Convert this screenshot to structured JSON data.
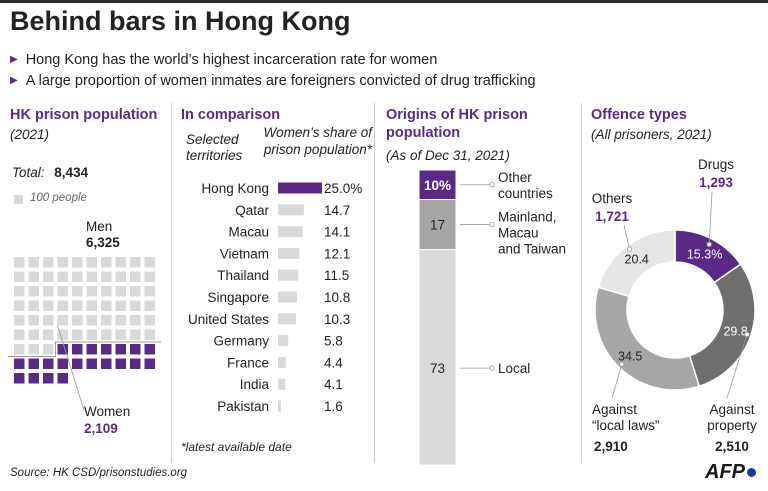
{
  "title": "Behind bars in Hong Kong",
  "bullets": [
    "Hong Kong has the world’s highest incarceration rate for women",
    "A large proportion of women inmates are foreigners convicted of drug trafficking"
  ],
  "colors": {
    "purple": "#5b2a86",
    "grey_light": "#d9d9d9",
    "grey_mid": "#a6a6a6",
    "grey_dark": "#6e6e6e",
    "grey_pale": "#e6e6e6"
  },
  "panel1": {
    "title": "HK prison population",
    "subtitle": "(2021)",
    "total_label": "Total:",
    "total_value": "8,434",
    "legend": "100 people",
    "men_label": "Men",
    "men_value": "6,325",
    "women_label": "Women",
    "women_value": "2,109"
  },
  "panel2": {
    "title": "In comparison",
    "col1_header": "Selected territories",
    "col2_header": "Women’s share of prison population*",
    "footnote": "*latest available date"
  },
  "panel3": {
    "title": "Origins of HK prison population",
    "subtitle": "(As of Dec 31, 2021)"
  },
  "panel4": {
    "title": "Offence types",
    "subtitle": "(All prisoners, 2021)"
  },
  "source": "Source: HK CSD/prisonstudies.org",
  "logo": "AFP",
  "chart_data": [
    {
      "type": "waffle",
      "unit": "100 people",
      "total": 8434,
      "series": [
        {
          "name": "Men",
          "value": 6325,
          "squares": 63
        },
        {
          "name": "Women",
          "value": 2109,
          "squares": 21
        }
      ]
    },
    {
      "type": "bar",
      "orientation": "horizontal",
      "categories": [
        "Hong Kong",
        "Qatar",
        "Macau",
        "Vietnam",
        "Thailand",
        "Singapore",
        "United States",
        "Germany",
        "France",
        "India",
        "Pakistan"
      ],
      "values": [
        25.0,
        14.7,
        14.1,
        12.1,
        11.5,
        10.8,
        10.3,
        5.8,
        4.4,
        4.1,
        1.6
      ],
      "value_labels": [
        "25.0%",
        "14.7",
        "14.1",
        "12.1",
        "11.5",
        "10.8",
        "10.3",
        "5.8",
        "4.4",
        "4.1",
        "1.6"
      ],
      "highlight": "Hong Kong"
    },
    {
      "type": "stacked_bar",
      "unit": "%",
      "segments": [
        {
          "name": "Other countries",
          "value": 10,
          "value_label": "10%"
        },
        {
          "name": "Mainland, Macau and Taiwan",
          "value": 17,
          "value_label": "17"
        },
        {
          "name": "Local",
          "value": 73,
          "value_label": "73"
        }
      ]
    },
    {
      "type": "pie",
      "variant": "donut",
      "unit": "%",
      "slices": [
        {
          "name": "Drugs",
          "count": "1,293",
          "value": 15.3,
          "value_label": "15.3%"
        },
        {
          "name": "Against property",
          "count": "2,510",
          "value": 29.8,
          "value_label": "29.8"
        },
        {
          "name": "Against “local laws”",
          "count": "2,910",
          "value": 34.5,
          "value_label": "34.5"
        },
        {
          "name": "Others",
          "count": "1,721",
          "value": 20.4,
          "value_label": "20.4"
        }
      ]
    }
  ]
}
